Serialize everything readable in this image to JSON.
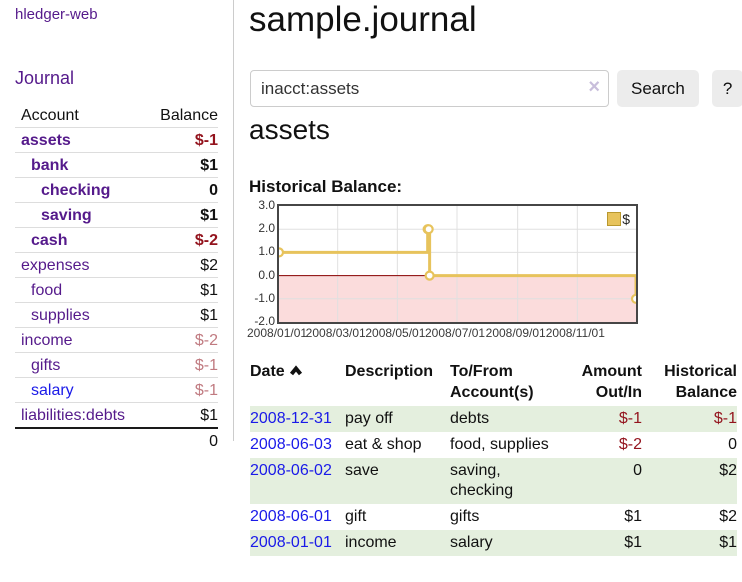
{
  "app": {
    "title": "hledger-web"
  },
  "sidebar": {
    "journal_label": "Journal",
    "table": {
      "account_header": "Account",
      "balance_header": "Balance",
      "rows": [
        {
          "name": "assets",
          "level": 1,
          "bold": true,
          "balance": "$-1",
          "balance_class": "neg-strong"
        },
        {
          "name": "bank",
          "level": 2,
          "bold": true,
          "balance": "$1",
          "balance_class": ""
        },
        {
          "name": "checking",
          "level": 3,
          "bold": true,
          "balance": "0",
          "balance_class": ""
        },
        {
          "name": "saving",
          "level": 3,
          "bold": true,
          "balance": "$1",
          "balance_class": ""
        },
        {
          "name": "cash",
          "level": 2,
          "bold": true,
          "balance": "$-2",
          "balance_class": "neg-strong"
        },
        {
          "name": "expenses",
          "level": 1,
          "bold": false,
          "balance": "$2",
          "balance_class": ""
        },
        {
          "name": "food",
          "level": 2,
          "bold": false,
          "balance": "$1",
          "balance_class": ""
        },
        {
          "name": "supplies",
          "level": 2,
          "bold": false,
          "balance": "$1",
          "balance_class": ""
        },
        {
          "name": "income",
          "level": 1,
          "bold": false,
          "balance": "$-2",
          "balance_class": "neg-soft"
        },
        {
          "name": "gifts",
          "level": 2,
          "bold": false,
          "balance": "$-1",
          "balance_class": "neg-soft"
        },
        {
          "name": "salary",
          "level": 2,
          "bold": false,
          "balance": "$-1",
          "balance_class": "neg-soft",
          "link_color": "blue"
        },
        {
          "name": "liabilities:debts",
          "level": 1,
          "bold": false,
          "balance": "$1",
          "balance_class": ""
        }
      ],
      "total": "0"
    }
  },
  "main": {
    "title": "sample.journal",
    "search": {
      "value": "inacct:assets",
      "clear_icon": "×",
      "button_label": "Search",
      "help_label": "?"
    },
    "account_heading": "assets"
  },
  "chart_data": {
    "type": "line",
    "title": "Historical Balance:",
    "step": true,
    "x_range": [
      "2008-01-01",
      "2008-12-31"
    ],
    "ylim": [
      -2,
      3
    ],
    "yticks": [
      "3.0",
      "2.0",
      "1.0",
      "0.0",
      "-1.0",
      "-2.0"
    ],
    "xticks": [
      {
        "label": "2008/01/01",
        "date": "2008-01-01"
      },
      {
        "label": "2008/03/01",
        "date": "2008-03-01"
      },
      {
        "label": "2008/05/01",
        "date": "2008-05-01"
      },
      {
        "label": "2008/07/01",
        "date": "2008-07-01"
      },
      {
        "label": "2008/09/01",
        "date": "2008-09-01"
      },
      {
        "label": "2008/11/01",
        "date": "2008-11-01"
      }
    ],
    "series": [
      {
        "name": "$",
        "color": "#e7c35c",
        "points": [
          {
            "date": "2008-01-01",
            "value": 1
          },
          {
            "date": "2008-06-01",
            "value": 2
          },
          {
            "date": "2008-06-02",
            "value": 2
          },
          {
            "date": "2008-06-03",
            "value": 0
          },
          {
            "date": "2008-12-31",
            "value": -1
          }
        ]
      }
    ],
    "legend": {
      "label": "$",
      "position": "top-right"
    },
    "grid": true,
    "negative_region_color": "#fbdcdc",
    "zero_line_color": "#8b0000",
    "grid_color": "#e0e0e0"
  },
  "register": {
    "headers": {
      "date": "Date",
      "sort_icon": "chevron-up",
      "description": "Description",
      "accounts": "To/From Account(s)",
      "amount": "Amount Out/In",
      "balance": "Historical Balance"
    },
    "rows": [
      {
        "date": "2008-12-31",
        "description": "pay off",
        "accounts": "debts",
        "amount": "$-1",
        "amount_negative": true,
        "balance": "$-1",
        "balance_negative": true
      },
      {
        "date": "2008-06-03",
        "description": "eat & shop",
        "accounts": "food, supplies",
        "amount": "$-2",
        "amount_negative": true,
        "balance": "0",
        "balance_negative": false
      },
      {
        "date": "2008-06-02",
        "description": "save",
        "accounts": "saving, checking",
        "amount": "0",
        "amount_negative": false,
        "balance": "$2",
        "balance_negative": false
      },
      {
        "date": "2008-06-01",
        "description": "gift",
        "accounts": "gifts",
        "amount": "$1",
        "amount_negative": false,
        "balance": "$2",
        "balance_negative": false
      },
      {
        "date": "2008-01-01",
        "description": "income",
        "accounts": "salary",
        "amount": "$1",
        "amount_negative": false,
        "balance": "$1",
        "balance_negative": false
      }
    ]
  }
}
